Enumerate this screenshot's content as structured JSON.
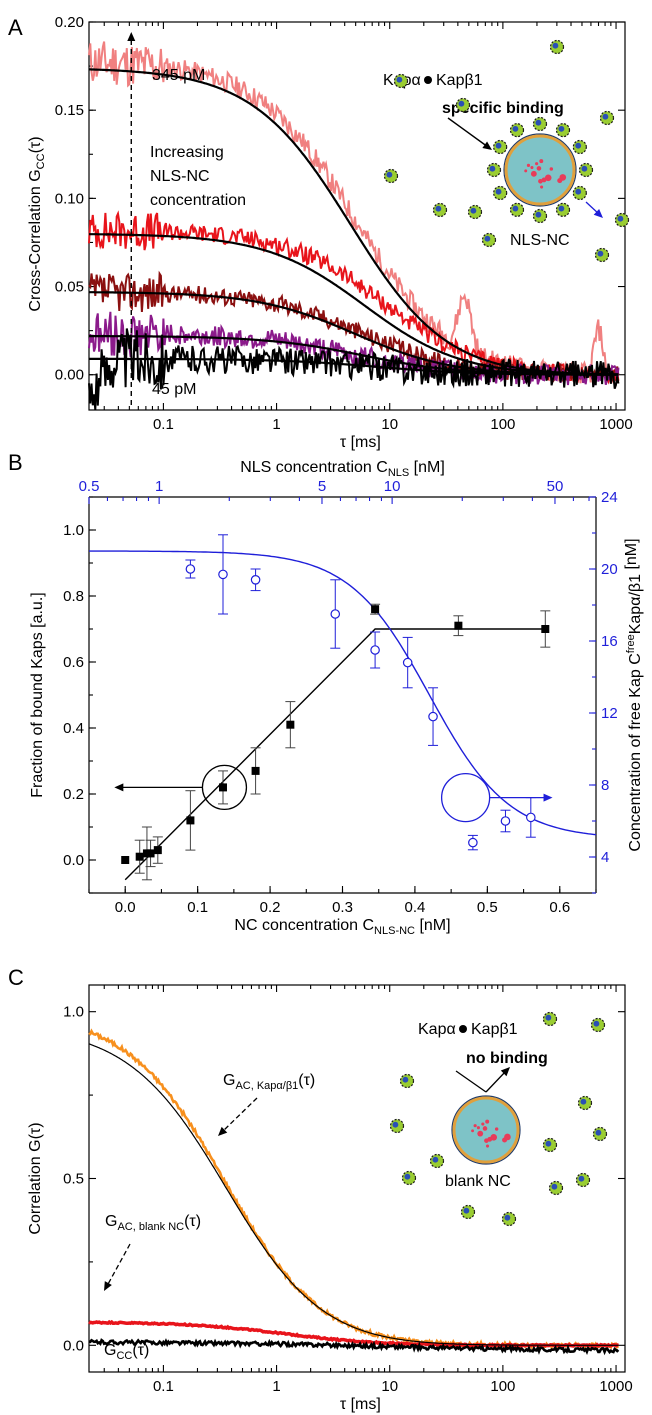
{
  "colors": {
    "salmon": "#f08080",
    "red": "#e8141b",
    "darkred": "#8b1010",
    "purple": "#8b1a8b",
    "black": "#000000",
    "blue": "#1f1fd9",
    "orange": "#f7901e",
    "fit": "#000000",
    "nc_fill": "#7ec3c7",
    "nc_ring": "#e0a03c",
    "kap_green": "#9acd32",
    "kap_blue": "#2a4fb5"
  },
  "chart_data": [
    {
      "panel": "A",
      "type": "line",
      "ylabel": "Cross-Correlation G",
      "ylabel_sub": "CC",
      "ylabel_tail": "(τ)",
      "xlabel": "τ [ms]",
      "x_scale": "log",
      "xlim": [
        0.022,
        1200
      ],
      "ylim": [
        -0.02,
        0.2
      ],
      "xticks": [
        {
          "v": 0.1,
          "label": "0.1"
        },
        {
          "v": 1,
          "label": "1"
        },
        {
          "v": 10,
          "label": "10"
        },
        {
          "v": 100,
          "label": "100"
        },
        {
          "v": 1000,
          "label": "1000"
        }
      ],
      "yticks": [
        {
          "v": 0.0,
          "label": "0.00"
        },
        {
          "v": 0.05,
          "label": "0.05"
        },
        {
          "v": 0.1,
          "label": "0.10"
        },
        {
          "v": 0.15,
          "label": "0.15"
        },
        {
          "v": 0.2,
          "label": "0.20"
        }
      ],
      "series": [
        {
          "color": "salmon",
          "amp": 0.178,
          "tau": 5.0,
          "noise": 0.006
        },
        {
          "color": "red",
          "amp": 0.082,
          "tau": 9.0,
          "noise": 0.005
        },
        {
          "color": "darkred",
          "amp": 0.047,
          "tau": 6.0,
          "noise": 0.005
        },
        {
          "color": "purple",
          "amp": 0.023,
          "tau": 5.0,
          "noise": 0.006
        },
        {
          "color": "black",
          "amp": 0.009,
          "tau": 8.0,
          "noise": 0.008
        }
      ],
      "fits": [
        {
          "amp": 0.174,
          "tau": 4.5
        },
        {
          "amp": 0.08,
          "tau": 6.0
        },
        {
          "amp": 0.047,
          "tau": 5.0
        },
        {
          "amp": 0.022,
          "tau": 6.0
        },
        {
          "amp": 0.009,
          "tau": 8.0
        }
      ],
      "annotations": {
        "top_conc": "345 pM",
        "bottom_conc": "45 pM",
        "increasing_lines": [
          "Increasing",
          "NLS-NC",
          "concentration"
        ],
        "kap_pair": [
          "Kapα",
          "Kapβ1"
        ],
        "binding": "specific binding",
        "particle": "NLS-NC"
      }
    },
    {
      "panel": "B",
      "type": "scatter",
      "xlabel": "NC concentration C",
      "xlabel_sub": "NLS-NC",
      "xlabel_tail": " [nM]",
      "ylabel": "Fraction of bound Kaps [a.u.]",
      "y2label": "Concentration of free Kap C",
      "y2label_sup": "free",
      "y2label_sub": "Kapα/β1",
      "y2label_tail": " [nM]",
      "top_xlabel": "NLS concentration C",
      "top_xlabel_sub": "NLS",
      "top_xlabel_tail": " [nM]",
      "xlim": [
        -0.05,
        0.65
      ],
      "ylim": [
        -0.1,
        1.1
      ],
      "y2lim": [
        2,
        24
      ],
      "top_xlim_log": [
        0.5,
        75
      ],
      "xticks": [
        {
          "v": 0.0,
          "label": "0.0"
        },
        {
          "v": 0.1,
          "label": "0.1"
        },
        {
          "v": 0.2,
          "label": "0.2"
        },
        {
          "v": 0.3,
          "label": "0.3"
        },
        {
          "v": 0.4,
          "label": "0.4"
        },
        {
          "v": 0.5,
          "label": "0.5"
        },
        {
          "v": 0.6,
          "label": "0.6"
        }
      ],
      "yticks": [
        {
          "v": 0.0,
          "label": "0.0"
        },
        {
          "v": 0.2,
          "label": "0.2"
        },
        {
          "v": 0.4,
          "label": "0.4"
        },
        {
          "v": 0.6,
          "label": "0.6"
        },
        {
          "v": 0.8,
          "label": "0.8"
        },
        {
          "v": 1.0,
          "label": "1.0"
        }
      ],
      "y2ticks": [
        {
          "v": 4,
          "label": "4"
        },
        {
          "v": 8,
          "label": "8"
        },
        {
          "v": 12,
          "label": "12"
        },
        {
          "v": 16,
          "label": "16"
        },
        {
          "v": 20,
          "label": "20"
        },
        {
          "v": 24,
          "label": "24"
        }
      ],
      "top_xticks": [
        {
          "v": 0.5,
          "label": "0.5"
        },
        {
          "v": 1,
          "label": "1"
        },
        {
          "v": 5,
          "label": "5"
        },
        {
          "v": 10,
          "label": "10"
        },
        {
          "v": 50,
          "label": "50"
        }
      ],
      "bound": {
        "x": [
          0.0,
          0.02,
          0.03,
          0.035,
          0.045,
          0.09,
          0.135,
          0.18,
          0.228,
          0.345,
          0.46,
          0.58
        ],
        "y": [
          0.0,
          0.01,
          0.02,
          0.02,
          0.03,
          0.12,
          0.22,
          0.27,
          0.41,
          0.76,
          0.71,
          0.7
        ],
        "err": [
          0.0,
          0.05,
          0.08,
          0.04,
          0.04,
          0.09,
          0.05,
          0.07,
          0.07,
          0.015,
          0.03,
          0.055
        ]
      },
      "bound_fit": {
        "x": [
          0.0,
          0.345,
          0.58
        ],
        "y": [
          -0.06,
          0.7,
          0.7
        ]
      },
      "free": {
        "x": [
          0.09,
          0.135,
          0.18,
          0.29,
          0.345,
          0.39,
          0.425,
          0.48,
          0.525,
          0.56
        ],
        "y": [
          20.0,
          19.7,
          19.4,
          17.5,
          15.5,
          14.8,
          11.8,
          4.8,
          6.0,
          6.2
        ],
        "err": [
          0.5,
          2.2,
          0.6,
          1.9,
          1.0,
          1.4,
          1.6,
          0.4,
          0.6,
          1.1
        ]
      },
      "free_fit": {
        "top": 21.0,
        "bottom": 5.0,
        "x0": 0.42,
        "w": 0.055
      }
    },
    {
      "panel": "C",
      "type": "line",
      "ylabel": "Correlation G(τ)",
      "xlabel": "τ [ms]",
      "x_scale": "log",
      "xlim": [
        0.022,
        1200
      ],
      "ylim": [
        -0.08,
        1.08
      ],
      "xticks": [
        {
          "v": 0.1,
          "label": "0.1"
        },
        {
          "v": 1,
          "label": "1"
        },
        {
          "v": 10,
          "label": "10"
        },
        {
          "v": 100,
          "label": "100"
        },
        {
          "v": 1000,
          "label": "1000"
        }
      ],
      "yticks": [
        {
          "v": 0.0,
          "label": "0.0"
        },
        {
          "v": 0.5,
          "label": "0.5"
        },
        {
          "v": 1.0,
          "label": "1.0"
        }
      ],
      "series": [
        {
          "color": "orange",
          "amp": 1.0,
          "tau": 0.35,
          "noise": 0.006
        },
        {
          "color": "red",
          "amp": 0.07,
          "tau": 1.2,
          "noise": 0.002
        },
        {
          "color": "black",
          "amp": 0.01,
          "tau": 10,
          "noise": 0.006
        }
      ],
      "annotations": {
        "gac_kap": "G",
        "gac_kap_sub": "AC, Kapα/β1",
        "gac_kap_tail": "(τ)",
        "gac_nc": "G",
        "gac_nc_sub": "AC, blank NC",
        "gac_nc_tail": "(τ)",
        "gcc": "G",
        "gcc_sub": "CC",
        "gcc_tail": "(τ)",
        "kap_pair": [
          "Kapα",
          "Kapβ1"
        ],
        "binding": "no binding",
        "particle": "blank NC"
      }
    }
  ],
  "panel_labels": [
    "A",
    "B",
    "C"
  ]
}
